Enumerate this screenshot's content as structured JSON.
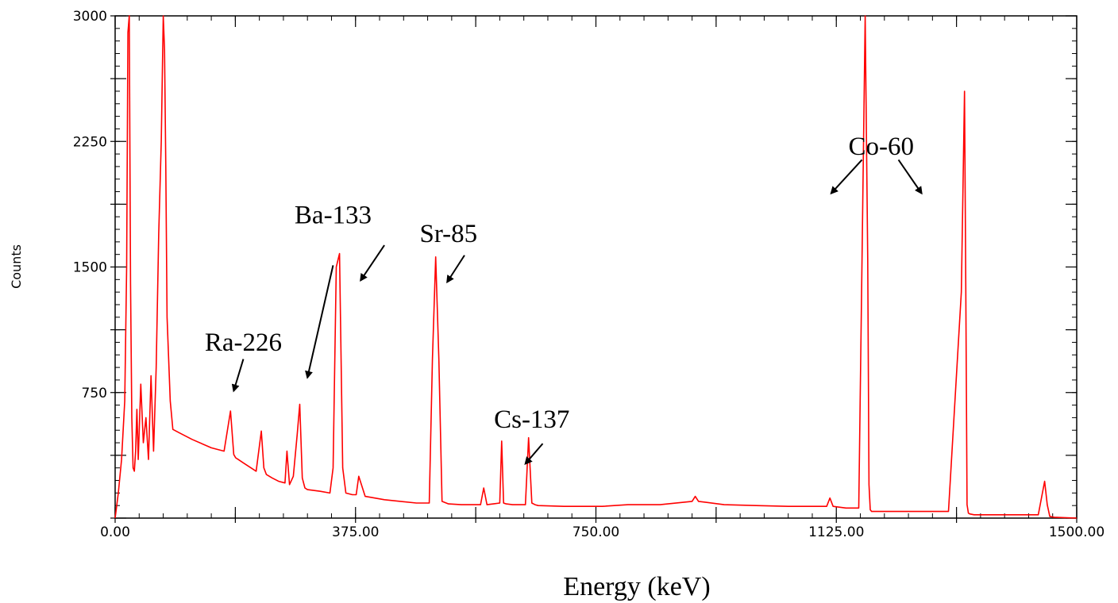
{
  "chart_data": {
    "type": "line",
    "xlabel": "Energy (keV)",
    "ylabel": "Counts",
    "xlim": [
      0,
      1500
    ],
    "ylim": [
      0,
      3000
    ],
    "x_ticks": [
      "0.00",
      "375.00",
      "750.00",
      "1125.00",
      "1500.00"
    ],
    "y_ticks": [
      "750",
      "1500",
      "2250",
      "3000"
    ],
    "line_color": "#ff0000",
    "series": [
      {
        "x": [
          0,
          5,
          10,
          15,
          18,
          20,
          22,
          24,
          26,
          28,
          30,
          32,
          34,
          36,
          40,
          44,
          48,
          52,
          56,
          60,
          64,
          68,
          72,
          75,
          77,
          79,
          81,
          83,
          86,
          90,
          95,
          100,
          120,
          150,
          170,
          180,
          185,
          188,
          192,
          200,
          220,
          228,
          232,
          236,
          245,
          255,
          265,
          268,
          272,
          278,
          284,
          288,
          292,
          296,
          300,
          320,
          335,
          340,
          345,
          350,
          355,
          360,
          370,
          376,
          380,
          390,
          420,
          470,
          490,
          495,
          500,
          505,
          510,
          520,
          540,
          570,
          575,
          580,
          590,
          600,
          603,
          606,
          610,
          620,
          640,
          645,
          650,
          655,
          660,
          700,
          760,
          800,
          850,
          900,
          905,
          910,
          950,
          1000,
          1050,
          1110,
          1115,
          1120,
          1140,
          1160,
          1165,
          1170,
          1174,
          1176,
          1178,
          1180,
          1184,
          1200,
          1250,
          1300,
          1320,
          1325,
          1327,
          1329,
          1331,
          1333,
          1340,
          1400,
          1440,
          1450,
          1454,
          1458,
          1465,
          1500
        ],
        "y": [
          0,
          150,
          350,
          700,
          1500,
          2900,
          3000,
          1400,
          600,
          300,
          280,
          400,
          650,
          350,
          800,
          450,
          600,
          350,
          850,
          400,
          900,
          1700,
          2250,
          3000,
          2800,
          2100,
          1200,
          1000,
          700,
          530,
          520,
          510,
          470,
          420,
          400,
          640,
          380,
          360,
          350,
          330,
          280,
          520,
          300,
          260,
          240,
          220,
          210,
          400,
          200,
          250,
          500,
          680,
          240,
          180,
          170,
          160,
          150,
          300,
          1500,
          1580,
          300,
          150,
          140,
          140,
          250,
          130,
          110,
          90,
          90,
          950,
          1560,
          950,
          100,
          85,
          80,
          80,
          180,
          80,
          85,
          90,
          460,
          90,
          85,
          80,
          80,
          480,
          90,
          80,
          75,
          70,
          70,
          80,
          80,
          100,
          130,
          100,
          80,
          75,
          70,
          70,
          120,
          70,
          60,
          60,
          1500,
          3000,
          1550,
          200,
          50,
          40,
          40,
          40,
          40,
          40,
          1350,
          2550,
          1380,
          80,
          30,
          25,
          20,
          20,
          20,
          220,
          80,
          10,
          5,
          0
        ]
      }
    ],
    "annotations": [
      {
        "text": "Ra-226",
        "x": 200,
        "y": 1000,
        "arrow_from": [
          200,
          950
        ],
        "arrow_to": [
          185,
          760
        ]
      },
      {
        "text": "Ba-133",
        "x": 340,
        "y": 1760,
        "arrow_from": [
          340,
          1510
        ],
        "arrow_to": [
          300,
          840
        ],
        "arrow2_from": [
          420,
          1630
        ],
        "arrow2_to": [
          383,
          1420
        ]
      },
      {
        "text": "Sr-85",
        "x": 520,
        "y": 1650,
        "arrow_from": [
          545,
          1570
        ],
        "arrow_to": [
          518,
          1410
        ]
      },
      {
        "text": "Cs-137",
        "x": 650,
        "y": 540,
        "arrow_from": [
          667,
          445
        ],
        "arrow_to": [
          640,
          325
        ]
      },
      {
        "text": "Co-60",
        "x": 1195,
        "y": 2170,
        "arrow_from": [
          1165,
          2140
        ],
        "arrow_to": [
          1117,
          1940
        ],
        "arrow2_from": [
          1222,
          2140
        ],
        "arrow2_to": [
          1258,
          1940
        ]
      }
    ]
  }
}
